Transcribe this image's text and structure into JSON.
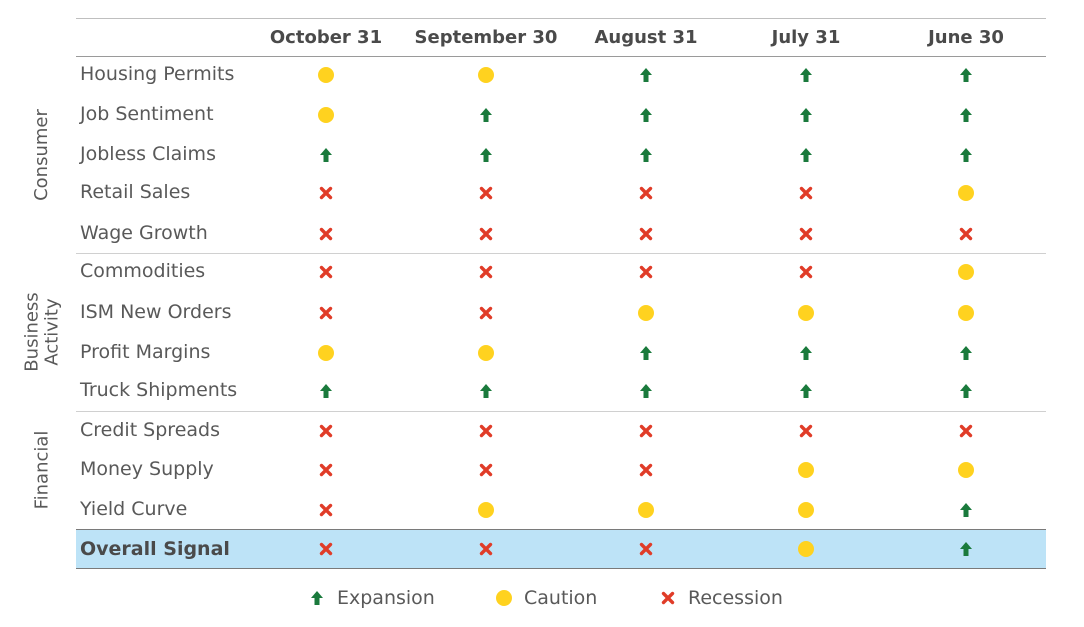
{
  "chart_data": {
    "type": "table",
    "columns": [
      "October 31",
      "September 30",
      "August 31",
      "July 31",
      "June 30"
    ],
    "groups": [
      {
        "name": "Consumer",
        "rows": [
          {
            "label": "Housing Permits",
            "values": [
              "caution",
              "caution",
              "expansion",
              "expansion",
              "expansion"
            ]
          },
          {
            "label": "Job Sentiment",
            "values": [
              "caution",
              "expansion",
              "expansion",
              "expansion",
              "expansion"
            ]
          },
          {
            "label": "Jobless Claims",
            "values": [
              "expansion",
              "expansion",
              "expansion",
              "expansion",
              "expansion"
            ]
          },
          {
            "label": "Retail Sales",
            "values": [
              "recession",
              "recession",
              "recession",
              "recession",
              "caution"
            ]
          },
          {
            "label": "Wage Growth",
            "values": [
              "recession",
              "recession",
              "recession",
              "recession",
              "recession"
            ]
          }
        ]
      },
      {
        "name": "Business Activity",
        "name_lines": [
          "Business",
          "Activity"
        ],
        "rows": [
          {
            "label": "Commodities",
            "values": [
              "recession",
              "recession",
              "recession",
              "recession",
              "caution"
            ]
          },
          {
            "label": "ISM New Orders",
            "values": [
              "recession",
              "recession",
              "caution",
              "caution",
              "caution"
            ]
          },
          {
            "label": "Profit Margins",
            "values": [
              "caution",
              "caution",
              "expansion",
              "expansion",
              "expansion"
            ]
          },
          {
            "label": "Truck Shipments",
            "values": [
              "expansion",
              "expansion",
              "expansion",
              "expansion",
              "expansion"
            ]
          }
        ]
      },
      {
        "name": "Financial",
        "rows": [
          {
            "label": "Credit Spreads",
            "values": [
              "recession",
              "recession",
              "recession",
              "recession",
              "recession"
            ]
          },
          {
            "label": "Money Supply",
            "values": [
              "recession",
              "recession",
              "recession",
              "caution",
              "caution"
            ]
          },
          {
            "label": "Yield Curve",
            "values": [
              "recession",
              "caution",
              "caution",
              "caution",
              "expansion"
            ]
          }
        ]
      }
    ],
    "overall": {
      "label": "Overall Signal",
      "values": [
        "recession",
        "recession",
        "recession",
        "caution",
        "expansion"
      ]
    },
    "legend": [
      {
        "key": "expansion",
        "label": "Expansion",
        "icon": "up-arrow-icon"
      },
      {
        "key": "caution",
        "label": "Caution",
        "icon": "circle-icon"
      },
      {
        "key": "recession",
        "label": "Recession",
        "icon": "x-icon"
      }
    ],
    "colors": {
      "expansion": "#1a7a3c",
      "caution": "#ffd21f",
      "recession": "#e03c28",
      "overall_band": "#bde3f7"
    }
  }
}
